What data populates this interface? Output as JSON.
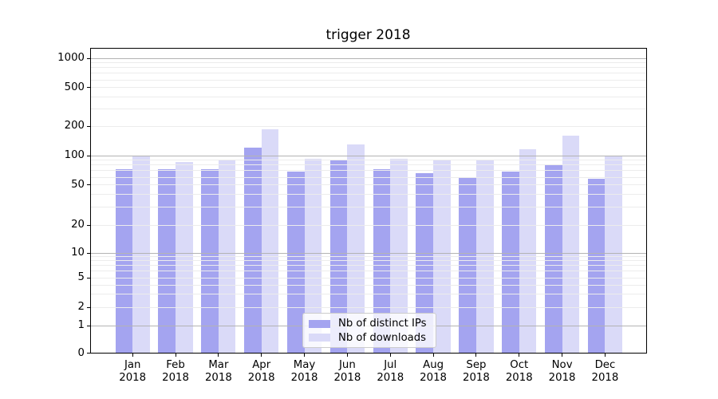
{
  "chart_data": {
    "type": "bar",
    "title": "trigger 2018",
    "categories": [
      "Jan",
      "Feb",
      "Mar",
      "Apr",
      "May",
      "Jun",
      "Jul",
      "Aug",
      "Sep",
      "Oct",
      "Nov",
      "Dec"
    ],
    "category_year": "2018",
    "series": [
      {
        "name": "Nb of distinct IPs",
        "color": "#a4a4f0",
        "values": [
          73,
          73,
          73,
          121,
          68,
          90,
          73,
          66,
          59,
          69,
          80,
          58
        ]
      },
      {
        "name": "Nb of downloads",
        "color": "#dadaf8",
        "values": [
          100,
          86,
          90,
          185,
          92,
          130,
          92,
          90,
          91,
          117,
          160,
          100
        ]
      }
    ],
    "yscale": "symlog",
    "yticks": [
      0,
      1,
      2,
      5,
      10,
      20,
      50,
      100,
      200,
      500,
      1000
    ],
    "ylim": [
      0,
      1280
    ],
    "grid": true,
    "legend_position": "lower center",
    "colors": {
      "major_grid": "#b3b3b3",
      "minor_grid": "#ececec",
      "axis": "#000000",
      "text": "#000000",
      "legend_border": "#cccccc",
      "legend_bg": "rgba(255,255,255,0.8)"
    }
  }
}
